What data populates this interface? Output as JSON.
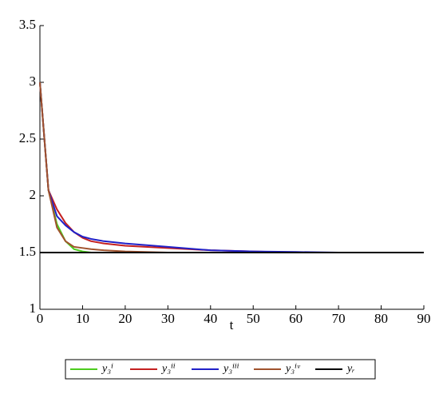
{
  "chart_data": {
    "type": "line",
    "x_label": "t",
    "x": [
      0,
      2,
      4,
      6,
      8,
      10,
      12,
      15,
      20,
      30,
      40,
      50,
      60,
      70,
      90
    ],
    "series": [
      {
        "name": "y₃ⁱ",
        "color": "#4ccc1e",
        "values": [
          3,
          2.05,
          1.75,
          1.6,
          1.53,
          1.51,
          1.5,
          1.5,
          1.5,
          1.5,
          1.5,
          1.5,
          1.5,
          1.5,
          1.5
        ]
      },
      {
        "name": "y₃ⁱⁱ",
        "color": "#c42020",
        "values": [
          3,
          2.05,
          1.88,
          1.76,
          1.68,
          1.63,
          1.6,
          1.58,
          1.56,
          1.54,
          1.52,
          1.51,
          1.5,
          1.5,
          1.5
        ]
      },
      {
        "name": "y₃ⁱⁱⁱ",
        "color": "#2020c8",
        "values": [
          3,
          2.05,
          1.82,
          1.74,
          1.68,
          1.64,
          1.62,
          1.6,
          1.58,
          1.55,
          1.52,
          1.51,
          1.505,
          1.5,
          1.5
        ]
      },
      {
        "name": "y₃ⁱᵛ",
        "color": "#a0522d",
        "values": [
          3,
          2.05,
          1.72,
          1.6,
          1.55,
          1.54,
          1.53,
          1.52,
          1.51,
          1.5,
          1.5,
          1.5,
          1.5,
          1.5,
          1.5
        ]
      },
      {
        "name": "yᵣ",
        "color": "#000000",
        "values": [
          1.5,
          1.5,
          1.5,
          1.5,
          1.5,
          1.5,
          1.5,
          1.5,
          1.5,
          1.5,
          1.5,
          1.5,
          1.5,
          1.5,
          1.5
        ]
      }
    ],
    "xlim": [
      0,
      90
    ],
    "xticks": [
      0,
      10,
      20,
      30,
      40,
      50,
      60,
      70,
      80,
      90
    ],
    "ylim": [
      1,
      3.5
    ],
    "yticks": [
      1,
      1.5,
      2,
      2.5,
      3,
      3.5
    ]
  }
}
